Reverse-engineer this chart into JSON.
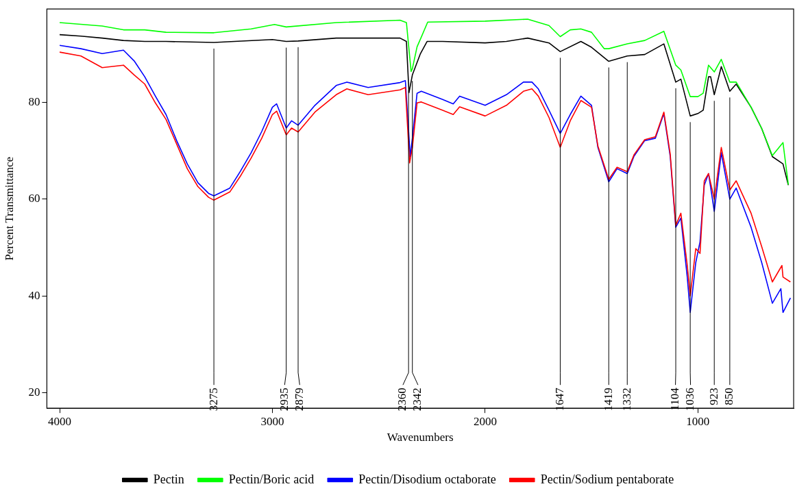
{
  "chart_data": {
    "type": "line",
    "xlabel": "Wavenumbers",
    "ylabel": "Percent Transmittance",
    "xlim": [
      4060,
      550
    ],
    "xticks": [
      4000,
      3000,
      2000,
      1000
    ],
    "ylim": [
      16.8,
      99.3
    ],
    "yticks": [
      20,
      40,
      60,
      80
    ],
    "legend": "bottom",
    "series": [
      {
        "name": "Pectin",
        "color": "#000000",
        "x": [
          4000,
          3900,
          3800,
          3700,
          3600,
          3500,
          3275,
          3000,
          2935,
          2879,
          2700,
          2400,
          2370,
          2358,
          2342,
          2305,
          2273,
          2200,
          2000,
          1900,
          1800,
          1700,
          1647,
          1550,
          1500,
          1419,
          1332,
          1250,
          1160,
          1104,
          1080,
          1036,
          1000,
          975,
          950,
          940,
          923,
          890,
          850,
          820,
          750,
          700,
          650,
          600,
          575
        ],
        "values": [
          94.0,
          93.7,
          93.3,
          92.8,
          92.6,
          92.6,
          92.4,
          93.0,
          92.6,
          92.7,
          93.3,
          93.3,
          92.6,
          82.0,
          85.7,
          90.0,
          92.6,
          92.6,
          92.3,
          92.6,
          93.3,
          92.3,
          90.5,
          92.6,
          91.4,
          88.5,
          89.6,
          89.9,
          92.1,
          84.2,
          84.8,
          77.2,
          77.7,
          78.4,
          85.3,
          85.3,
          81.6,
          87.4,
          82.3,
          83.8,
          79.0,
          74.6,
          68.8,
          67.3,
          62.9
        ]
      },
      {
        "name": "Pectin/Boric acid",
        "color": "#00ff00",
        "x": [
          4000,
          3800,
          3700,
          3600,
          3500,
          3275,
          3100,
          2990,
          2935,
          2700,
          2400,
          2370,
          2348,
          2342,
          2320,
          2300,
          2270,
          2000,
          1800,
          1700,
          1647,
          1600,
          1550,
          1500,
          1440,
          1419,
          1332,
          1250,
          1160,
          1104,
          1080,
          1036,
          1000,
          975,
          950,
          923,
          890,
          850,
          820,
          750,
          700,
          650,
          600,
          575
        ],
        "values": [
          96.5,
          95.8,
          95.0,
          95.0,
          94.5,
          94.4,
          95.2,
          96.1,
          95.6,
          96.5,
          97.0,
          96.5,
          86.4,
          87.0,
          91.5,
          93.5,
          96.6,
          96.8,
          97.2,
          95.9,
          93.6,
          95.0,
          95.2,
          94.5,
          91.1,
          91.1,
          92.1,
          92.8,
          94.7,
          87.7,
          86.7,
          81.2,
          81.2,
          81.9,
          87.7,
          86.3,
          88.9,
          84.2,
          84.2,
          79.0,
          74.6,
          69.0,
          71.7,
          63.0
        ]
      },
      {
        "name": "Pectin/Disodium octaborate",
        "color": "#0000ff",
        "x": [
          4000,
          3900,
          3800,
          3700,
          3650,
          3600,
          3550,
          3500,
          3450,
          3400,
          3350,
          3300,
          3275,
          3200,
          3150,
          3100,
          3050,
          3000,
          2980,
          2935,
          2910,
          2879,
          2800,
          2700,
          2650,
          2550,
          2400,
          2375,
          2352,
          2342,
          2320,
          2300,
          2200,
          2150,
          2120,
          2000,
          1900,
          1820,
          1780,
          1750,
          1700,
          1647,
          1600,
          1550,
          1500,
          1470,
          1419,
          1380,
          1332,
          1300,
          1250,
          1200,
          1160,
          1130,
          1104,
          1080,
          1050,
          1036,
          1010,
          990,
          970,
          950,
          923,
          890,
          850,
          820,
          750,
          700,
          650,
          610,
          600,
          565
        ],
        "values": [
          91.8,
          91.1,
          90.1,
          90.8,
          88.6,
          85.3,
          81.3,
          77.5,
          72.1,
          67.3,
          63.4,
          61.2,
          60.7,
          62.3,
          65.8,
          69.6,
          74.0,
          79.0,
          79.7,
          74.7,
          76.2,
          75.3,
          79.4,
          83.5,
          84.2,
          83.1,
          84.1,
          84.5,
          68.8,
          72.6,
          81.9,
          82.3,
          80.6,
          79.7,
          81.3,
          79.4,
          81.6,
          84.2,
          84.2,
          82.8,
          78.4,
          73.6,
          77.5,
          81.3,
          79.4,
          70.7,
          63.6,
          66.3,
          65.3,
          68.9,
          72.1,
          72.6,
          77.7,
          68.8,
          54.2,
          56.1,
          43.9,
          36.6,
          46.9,
          51.2,
          62.9,
          65.3,
          57.5,
          69.6,
          60.0,
          62.3,
          54.2,
          46.9,
          38.5,
          41.5,
          36.6,
          39.6
        ]
      },
      {
        "name": "Pectin/Sodium pentaborate",
        "color": "#ff0000",
        "x": [
          4000,
          3900,
          3800,
          3700,
          3650,
          3600,
          3550,
          3500,
          3450,
          3400,
          3350,
          3300,
          3275,
          3200,
          3150,
          3100,
          3050,
          3000,
          2980,
          2935,
          2910,
          2879,
          2800,
          2700,
          2650,
          2550,
          2400,
          2375,
          2355,
          2342,
          2320,
          2300,
          2200,
          2150,
          2120,
          2000,
          1900,
          1820,
          1780,
          1750,
          1700,
          1647,
          1600,
          1550,
          1500,
          1470,
          1419,
          1380,
          1332,
          1300,
          1250,
          1200,
          1160,
          1130,
          1104,
          1080,
          1050,
          1036,
          1010,
          990,
          970,
          950,
          923,
          890,
          850,
          820,
          750,
          700,
          650,
          605,
          600,
          565
        ],
        "values": [
          90.4,
          89.6,
          87.2,
          87.7,
          85.7,
          83.8,
          79.9,
          76.5,
          71.4,
          66.3,
          62.6,
          60.4,
          59.8,
          61.5,
          64.8,
          68.5,
          72.6,
          77.5,
          78.2,
          73.3,
          74.7,
          73.9,
          78.0,
          81.6,
          82.8,
          81.6,
          82.6,
          83.1,
          67.5,
          70.7,
          79.9,
          80.1,
          78.4,
          77.5,
          79.1,
          77.2,
          79.4,
          82.3,
          82.8,
          81.3,
          76.9,
          70.7,
          76.2,
          80.4,
          79.0,
          71.0,
          64.1,
          66.6,
          65.7,
          69.2,
          72.3,
          72.9,
          78.0,
          69.3,
          54.6,
          57.1,
          46.3,
          40.0,
          49.8,
          48.8,
          63.8,
          65.3,
          60.0,
          70.7,
          61.9,
          63.8,
          57.1,
          50.2,
          42.9,
          46.3,
          43.9,
          42.9
        ]
      }
    ],
    "ref_lines": [
      {
        "axis": "x",
        "value": 3275,
        "label": "3275"
      },
      {
        "axis": "x",
        "value": 2935,
        "label": "2935"
      },
      {
        "axis": "x",
        "value": 2879,
        "label": "2879"
      },
      {
        "axis": "x",
        "value": 2360,
        "label": "2360"
      },
      {
        "axis": "x",
        "value": 2342,
        "label": "2342"
      },
      {
        "axis": "x",
        "value": 1647,
        "label": "1647"
      },
      {
        "axis": "x",
        "value": 1419,
        "label": "1419"
      },
      {
        "axis": "x",
        "value": 1332,
        "label": "1332"
      },
      {
        "axis": "x",
        "value": 1104,
        "label": "1104"
      },
      {
        "axis": "x",
        "value": 1036,
        "label": "1036"
      },
      {
        "axis": "x",
        "value": 923,
        "label": "923"
      },
      {
        "axis": "x",
        "value": 850,
        "label": "850"
      }
    ]
  }
}
